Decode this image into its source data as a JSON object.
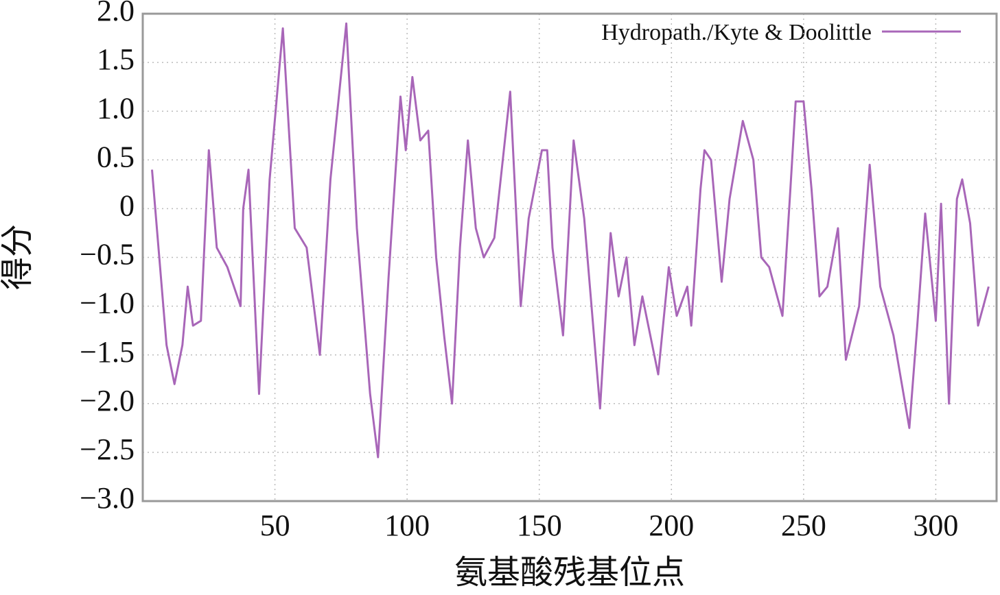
{
  "chart_data": {
    "type": "line",
    "xlabel": "氨基酸残基位点",
    "ylabel": "得分",
    "xlim": [
      0,
      323
    ],
    "ylim": [
      -3.0,
      2.0
    ],
    "xticks": [
      50,
      100,
      150,
      200,
      250,
      300
    ],
    "yticks": [
      {
        "value": -3.0,
        "label": "−3.0"
      },
      {
        "value": -2.5,
        "label": "−2.5"
      },
      {
        "value": -2.0,
        "label": "−2.0"
      },
      {
        "value": -1.5,
        "label": "−1.5"
      },
      {
        "value": -1.0,
        "label": "−1.0"
      },
      {
        "value": -0.5,
        "label": "−0.5"
      },
      0,
      {
        "value": 0.5,
        "label": "0.5"
      },
      {
        "value": 1.0,
        "label": "1.0"
      },
      {
        "value": 1.5,
        "label": "1.5"
      },
      {
        "value": 2.0,
        "label": "2.0"
      }
    ],
    "grid": true,
    "legend": "upper right",
    "x": [
      3.5,
      9,
      12,
      15,
      17,
      19,
      22,
      25,
      28,
      32,
      37,
      38,
      40,
      44,
      48,
      53,
      57.5,
      62,
      67,
      71,
      77,
      81,
      86,
      89,
      93,
      97.5,
      99.5,
      102,
      105,
      108,
      111,
      114,
      117,
      120,
      123,
      126,
      129,
      133,
      139,
      143,
      146,
      151,
      153,
      155,
      159,
      163,
      167,
      173,
      177,
      180,
      183,
      186,
      189,
      195,
      199,
      202,
      206,
      207.5,
      211,
      212.5,
      215,
      219,
      222,
      227,
      231,
      234,
      237,
      242,
      245,
      247,
      250,
      253,
      256,
      259,
      263,
      266,
      271,
      275,
      279,
      284,
      290,
      293,
      296,
      300,
      302,
      305,
      308,
      310,
      313,
      316,
      320
    ],
    "series": [
      {
        "name": "Hydropath./Kyte & Doolittle",
        "color": "#a866b8",
        "values": [
          0.4,
          -1.4,
          -1.8,
          -1.4,
          -0.8,
          -1.2,
          -1.15,
          0.6,
          -0.4,
          -0.6,
          -1.0,
          0.0,
          0.4,
          -1.9,
          0.3,
          1.85,
          -0.2,
          -0.4,
          -1.5,
          0.3,
          1.9,
          -0.2,
          -1.9,
          -2.55,
          -0.7,
          1.15,
          0.6,
          1.35,
          0.7,
          0.8,
          -0.5,
          -1.3,
          -2.0,
          -0.4,
          0.7,
          -0.2,
          -0.5,
          -0.3,
          1.2,
          -1.0,
          -0.1,
          0.6,
          0.6,
          -0.4,
          -1.3,
          0.7,
          -0.1,
          -2.05,
          -0.25,
          -0.9,
          -0.5,
          -1.4,
          -0.9,
          -1.7,
          -0.6,
          -1.1,
          -0.8,
          -1.2,
          0.2,
          0.6,
          0.5,
          -0.75,
          0.1,
          0.9,
          0.5,
          -0.5,
          -0.6,
          -1.1,
          0.2,
          1.1,
          1.1,
          0.2,
          -0.9,
          -0.8,
          -0.2,
          -1.55,
          -1.0,
          0.45,
          -0.8,
          -1.3,
          -2.25,
          -1.2,
          -0.05,
          -1.15,
          0.05,
          -2.0,
          0.1,
          0.3,
          -0.15,
          -1.2,
          -0.8
        ]
      }
    ]
  }
}
